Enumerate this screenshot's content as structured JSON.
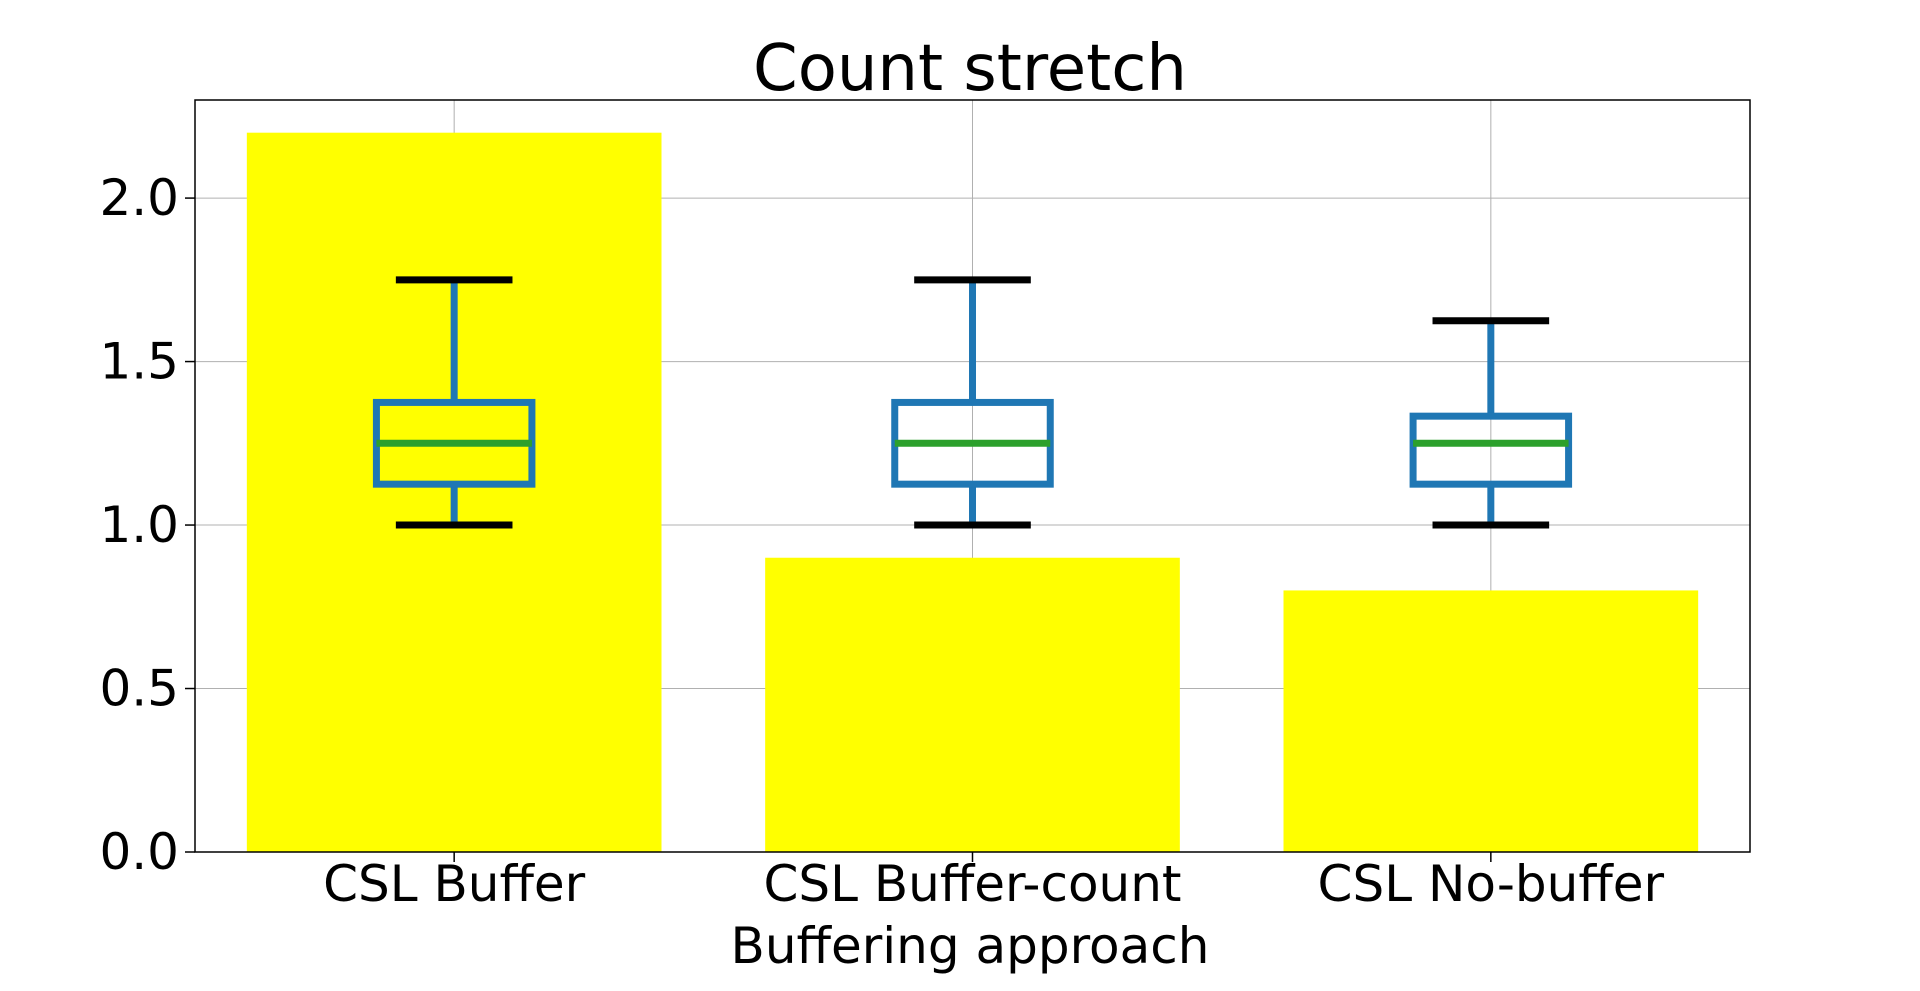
{
  "chart_data": {
    "type": "bar",
    "title": "Count stretch",
    "xlabel": "Buffering approach",
    "ylabel": "",
    "categories": [
      "CSL Buffer",
      "CSL Buffer-count",
      "CSL No-buffer"
    ],
    "ylim": [
      0,
      2.3
    ],
    "yticks": [
      0.0,
      0.5,
      1.0,
      1.5,
      2.0
    ],
    "ytick_labels": [
      "0.0",
      "0.5",
      "1.0",
      "1.5",
      "2.0"
    ],
    "grid": true,
    "legend": "none",
    "bar_color": "#ffff00",
    "box_color": "#1f77b4",
    "median_color": "#2ca02c",
    "whisker_cap_color": "#000000",
    "bars": [
      2.2,
      0.9,
      0.8
    ],
    "boxes": [
      {
        "whislo": 1.0,
        "q1": 1.125,
        "med": 1.25,
        "q3": 1.375,
        "whishi": 1.75
      },
      {
        "whislo": 1.0,
        "q1": 1.125,
        "med": 1.25,
        "q3": 1.375,
        "whishi": 1.75
      },
      {
        "whislo": 1.0,
        "q1": 1.125,
        "med": 1.25,
        "q3": 1.333,
        "whishi": 1.625
      }
    ]
  }
}
